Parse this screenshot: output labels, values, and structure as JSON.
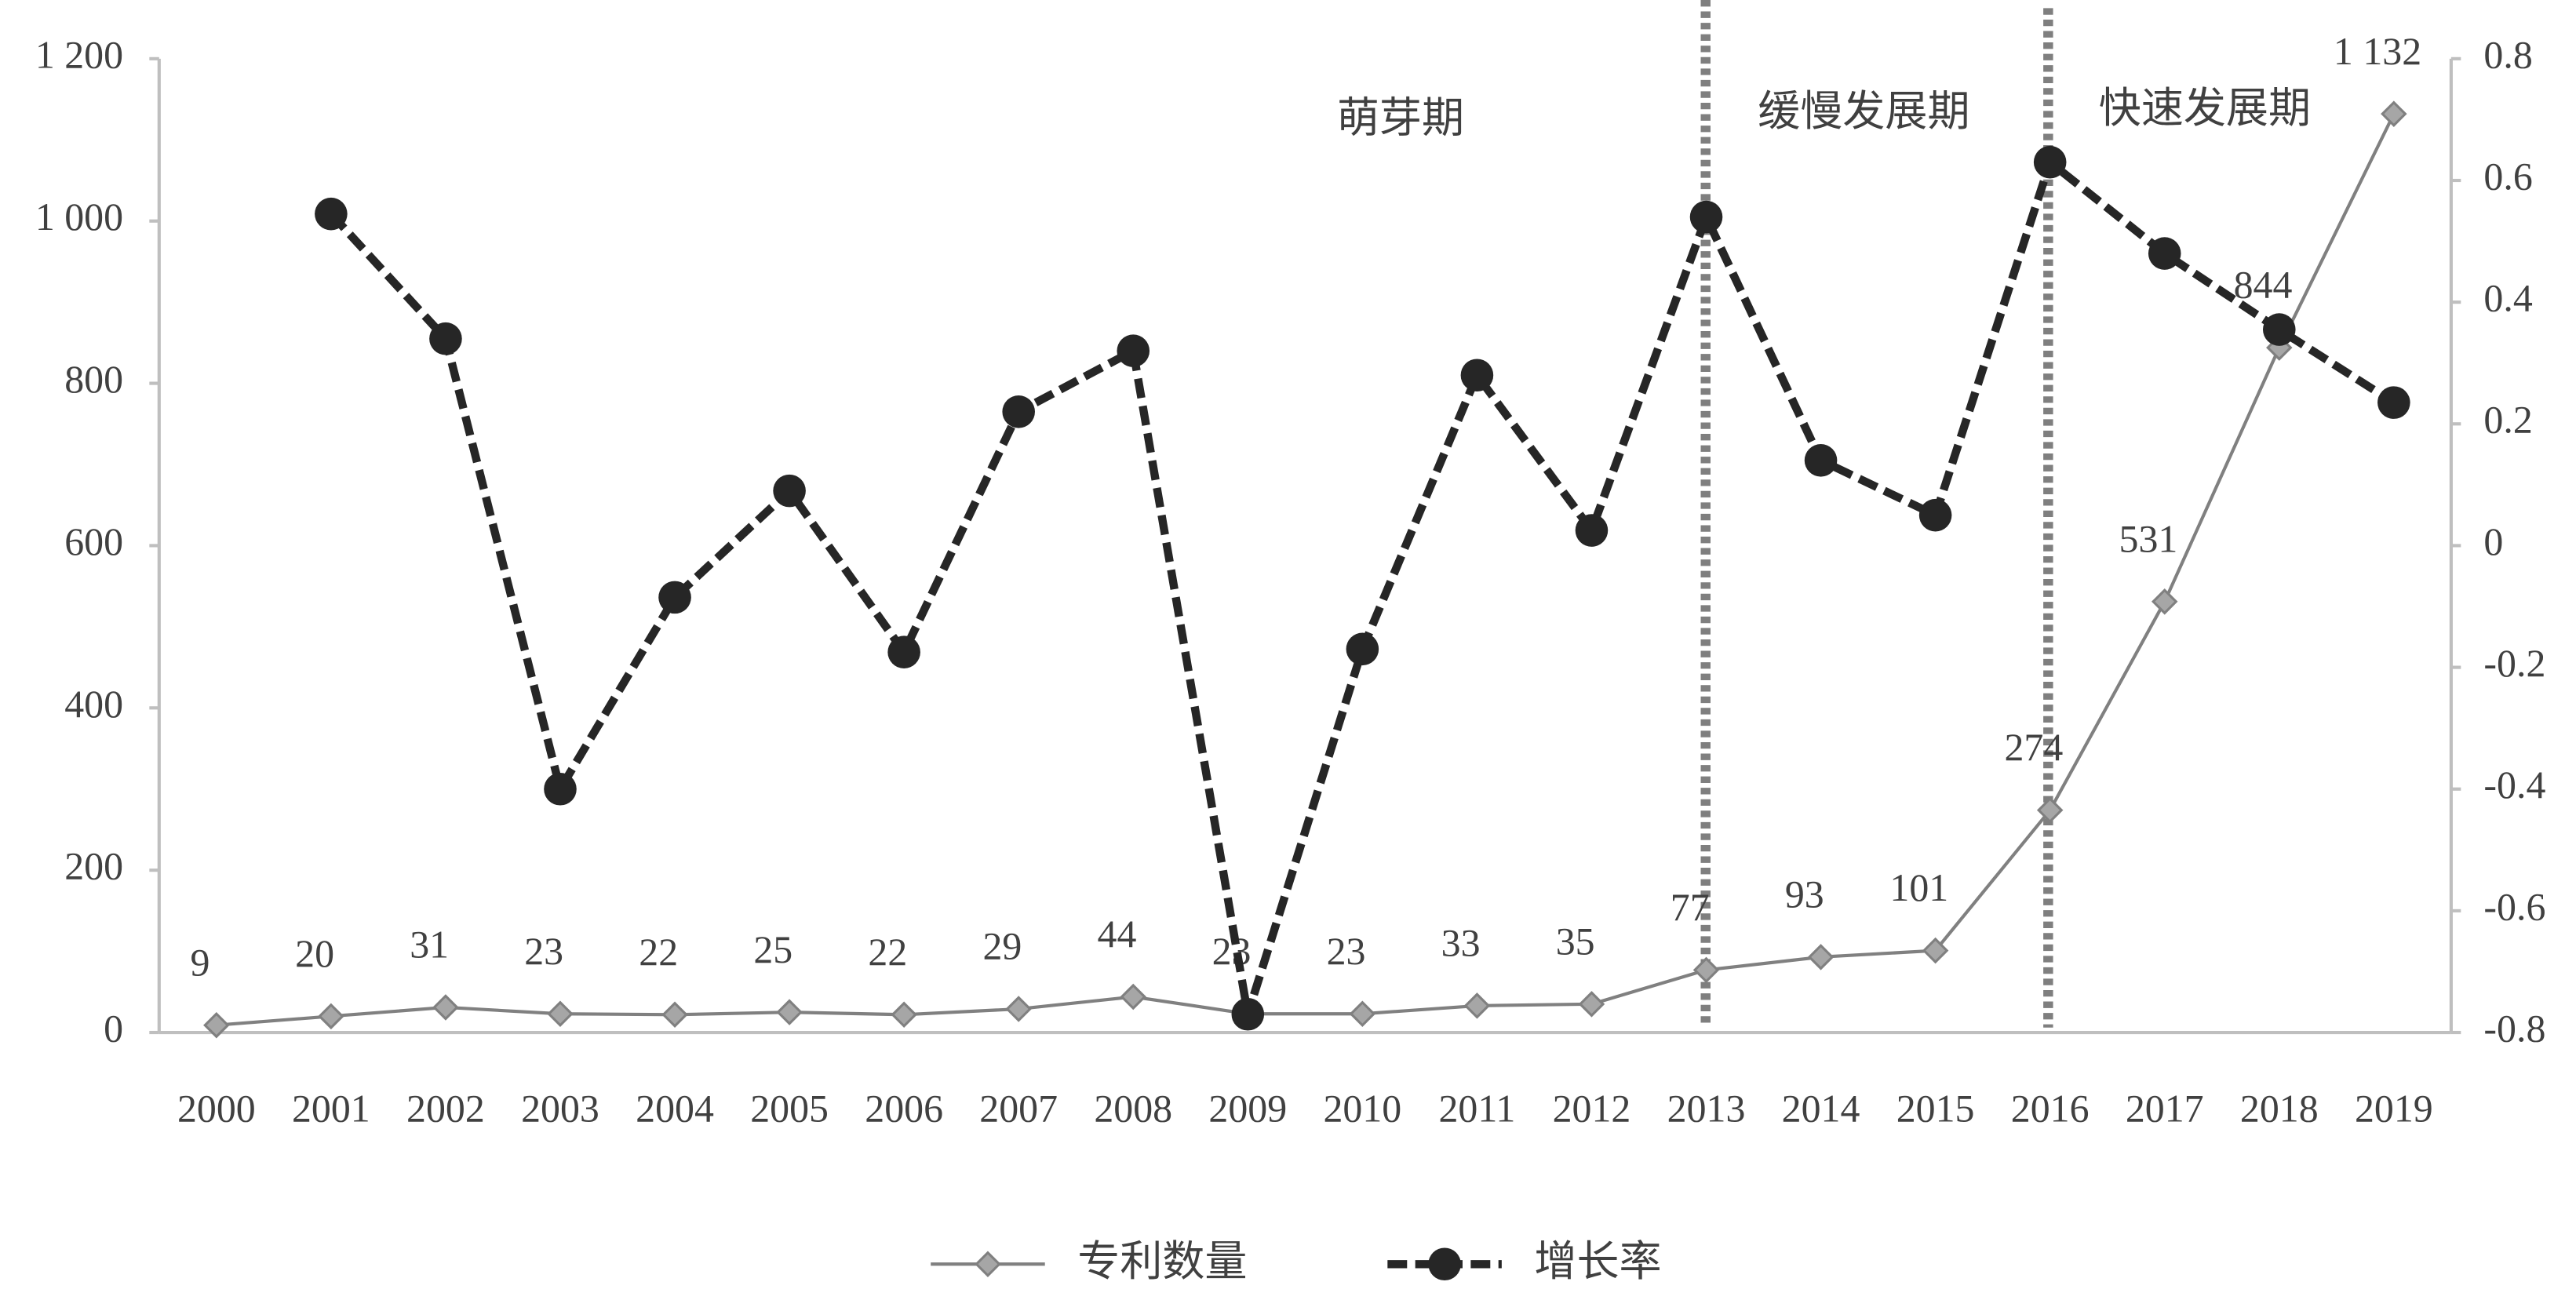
{
  "chart_data": {
    "type": "line",
    "categories": [
      "2000",
      "2001",
      "2002",
      "2003",
      "2004",
      "2005",
      "2006",
      "2007",
      "2008",
      "2009",
      "2010",
      "2011",
      "2012",
      "2013",
      "2014",
      "2015",
      "2016",
      "2017",
      "2018",
      "2019"
    ],
    "series": [
      {
        "name": "专利数量",
        "color": "#808080",
        "marker_color": "#a6a6a6",
        "values": [
          9,
          20,
          31,
          23,
          22,
          25,
          22,
          29,
          44,
          23,
          23,
          33,
          35,
          77,
          93,
          101,
          274,
          531,
          844,
          1132
        ],
        "value_labels": [
          "9",
          "20",
          "31",
          "23",
          "22",
          "25",
          "22",
          "29",
          "44",
          "23",
          "23",
          "33",
          "35",
          "77",
          "93",
          "101",
          "274",
          "531",
          "844",
          "1 132"
        ]
      },
      {
        "name": "增长率",
        "color": "#262626",
        "axis": "y2",
        "dashed": true,
        "values": [
          null,
          0.545,
          0.34,
          -0.4,
          -0.085,
          0.09,
          -0.175,
          0.22,
          0.32,
          -0.77,
          -0.17,
          0.28,
          0.025,
          0.54,
          0.14,
          0.05,
          0.63,
          0.48,
          0.355,
          0.235
        ]
      }
    ],
    "ylim": [
      0,
      1200
    ],
    "yticks": [
      0,
      200,
      400,
      600,
      800,
      {
        "value": 1000,
        "label": "1 000"
      },
      {
        "value": 1200,
        "label": "1 200"
      }
    ],
    "y2lim": [
      -0.8,
      0.8
    ],
    "y2ticks": [
      -0.8,
      -0.6,
      -0.4,
      -0.2,
      0,
      0.2,
      0.4,
      0.6,
      0.8
    ],
    "annotations": [
      "萌芽期",
      "缓慢发展期",
      "快速发展期"
    ],
    "legend": "bottom"
  }
}
